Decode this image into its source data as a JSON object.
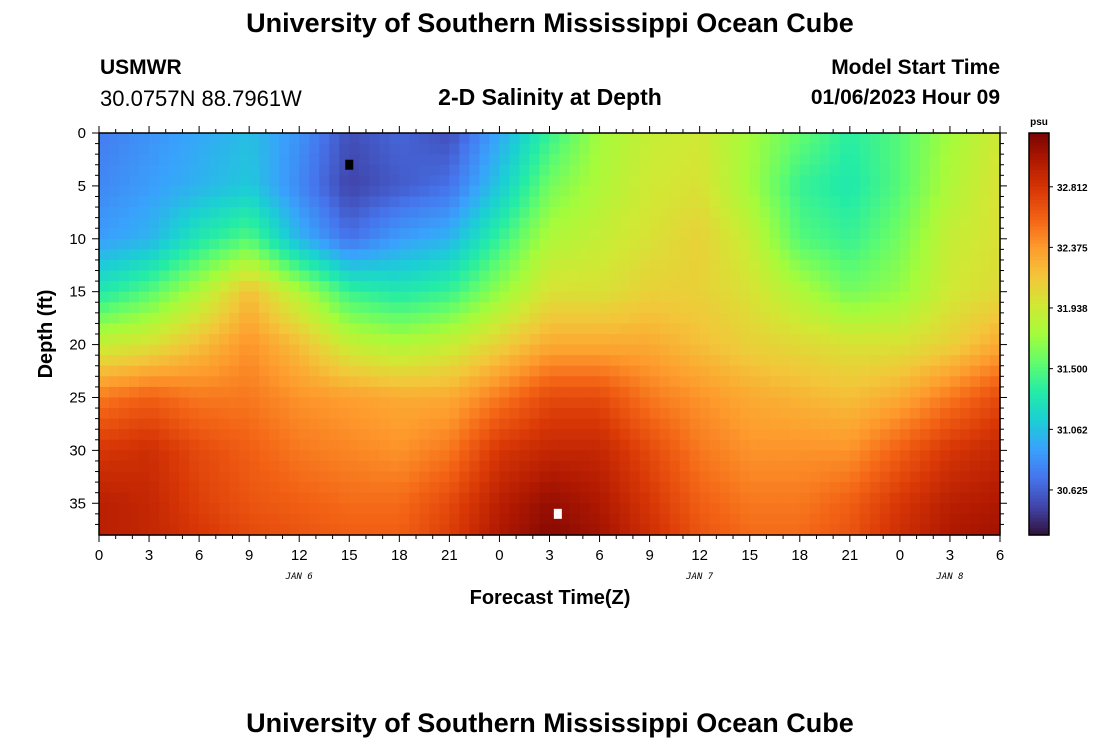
{
  "header": {
    "title": "University of Southern Mississippi Ocean Cube",
    "station": "USMWR",
    "coordinates": "30.0757N  88.7961W",
    "plot_title": "2-D Salinity at Depth",
    "model_start_label": "Model Start Time",
    "model_start_value": "01/06/2023 Hour 09"
  },
  "footer": {
    "title": "University of Southern Mississippi Ocean Cube"
  },
  "chart_data": {
    "type": "heatmap",
    "xlabel": "Forecast Time(Z)",
    "ylabel": "Depth (ft)",
    "xlim": [
      0,
      54
    ],
    "ylim": [
      38,
      0
    ],
    "x_ticks": [
      0,
      3,
      6,
      9,
      12,
      15,
      18,
      21,
      24,
      27,
      30,
      33,
      36,
      39,
      42,
      45,
      48,
      51,
      54
    ],
    "x_tick_labels": [
      "0",
      "3",
      "6",
      "9",
      "12",
      "15",
      "18",
      "21",
      "0",
      "3",
      "6",
      "9",
      "12",
      "15",
      "18",
      "21",
      "0",
      "3",
      "6"
    ],
    "y_ticks": [
      0,
      5,
      10,
      15,
      20,
      25,
      30,
      35
    ],
    "y_tick_labels": [
      "0",
      "5",
      "10",
      "15",
      "20",
      "25",
      "30",
      "35"
    ],
    "date_labels": [
      {
        "x": 12,
        "text": "JAN 6"
      },
      {
        "x": 36,
        "text": "JAN 7"
      },
      {
        "x": 51,
        "text": "JAN 8"
      }
    ],
    "colorbar": {
      "unit": "psu",
      "min": 30.3,
      "max": 33.2,
      "labels": [
        "32.812",
        "32.375",
        "31.938",
        "31.500",
        "31.062",
        "30.625"
      ],
      "colors": [
        "#30123b",
        "#4145ab",
        "#4675ed",
        "#39a2fc",
        "#1bcfd4",
        "#24eca6",
        "#61fc6c",
        "#a4fc3b",
        "#d1e834",
        "#f3c63a",
        "#fe9b2d",
        "#f36315",
        "#d93806",
        "#b11901",
        "#7a0403"
      ]
    },
    "markers": [
      {
        "x": 15,
        "y": 3,
        "color": "#000000"
      },
      {
        "x": 27.5,
        "y": 36,
        "color": "#ffffff"
      }
    ],
    "series": [
      {
        "depths": [
          0,
          5,
          10,
          15,
          20,
          25,
          30,
          35,
          38
        ],
        "times": [
          0,
          3,
          6,
          9,
          12,
          15,
          18,
          21,
          24,
          27,
          30,
          33,
          36,
          39,
          42,
          45,
          48,
          51,
          54
        ],
        "salinity_psu": [
          [
            30.75,
            30.85,
            30.95,
            31.05,
            30.85,
            30.55,
            30.65,
            30.55,
            30.95,
            31.4,
            31.75,
            31.9,
            31.95,
            31.75,
            31.55,
            31.35,
            31.5,
            31.75,
            31.95
          ],
          [
            30.8,
            30.9,
            31.0,
            31.1,
            30.8,
            30.5,
            30.6,
            30.7,
            31.1,
            31.6,
            31.8,
            31.95,
            32.0,
            31.75,
            31.4,
            31.3,
            31.5,
            31.8,
            32.0
          ],
          [
            30.9,
            31.0,
            31.3,
            31.5,
            31.0,
            30.7,
            30.9,
            31.0,
            31.4,
            31.8,
            31.9,
            32.0,
            32.1,
            31.9,
            31.5,
            31.4,
            31.6,
            31.9,
            32.0
          ],
          [
            31.3,
            31.5,
            31.8,
            32.2,
            31.8,
            31.4,
            31.3,
            31.4,
            31.7,
            32.0,
            32.0,
            32.1,
            32.1,
            32.0,
            31.8,
            31.6,
            31.7,
            31.95,
            32.05
          ],
          [
            31.9,
            32.0,
            32.2,
            32.4,
            32.2,
            31.9,
            31.8,
            31.9,
            32.1,
            32.3,
            32.3,
            32.3,
            32.2,
            32.1,
            32.05,
            32.0,
            32.0,
            32.1,
            32.3
          ],
          [
            32.5,
            32.6,
            32.5,
            32.5,
            32.4,
            32.35,
            32.3,
            32.3,
            32.5,
            32.7,
            32.7,
            32.5,
            32.4,
            32.3,
            32.25,
            32.2,
            32.3,
            32.5,
            32.7
          ],
          [
            32.8,
            32.85,
            32.7,
            32.6,
            32.5,
            32.45,
            32.4,
            32.5,
            32.8,
            32.9,
            32.9,
            32.7,
            32.5,
            32.4,
            32.4,
            32.4,
            32.6,
            32.8,
            32.9
          ],
          [
            32.95,
            32.9,
            32.75,
            32.65,
            32.6,
            32.55,
            32.55,
            32.7,
            32.95,
            33.1,
            33.0,
            32.8,
            32.6,
            32.5,
            32.5,
            32.6,
            32.8,
            32.95,
            33.0
          ],
          [
            32.95,
            32.9,
            32.8,
            32.7,
            32.65,
            32.6,
            32.6,
            32.75,
            33.0,
            33.15,
            33.05,
            32.85,
            32.65,
            32.55,
            32.55,
            32.65,
            32.85,
            33.0,
            33.05
          ]
        ]
      }
    ]
  }
}
